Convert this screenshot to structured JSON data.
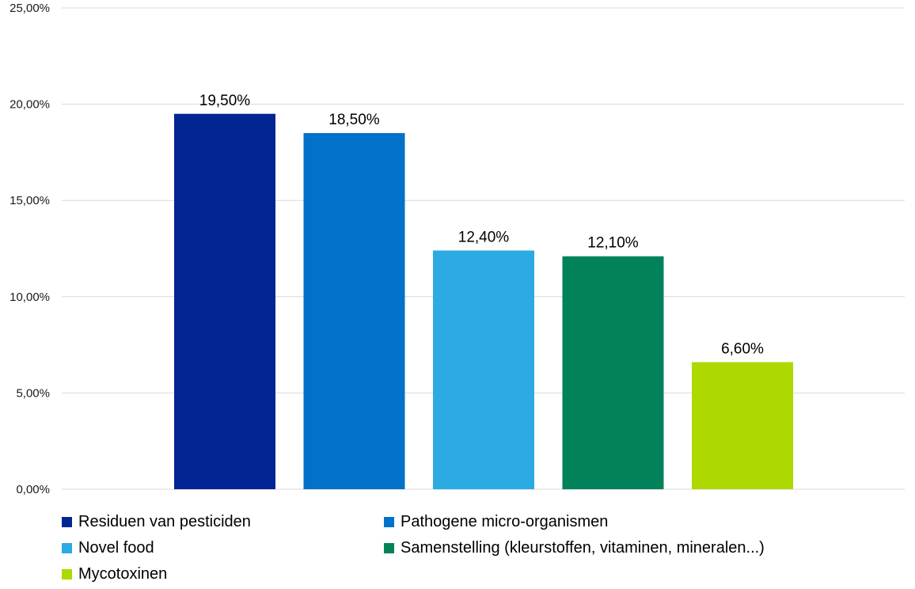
{
  "chart_data": {
    "type": "bar",
    "categories": [
      "Residuen van pesticiden",
      "Pathogene micro-organismen",
      "Novel food",
      "Samenstelling (kleurstoffen, vitaminen, mineralen...)",
      "Mycotoxinen"
    ],
    "values": [
      19.5,
      18.5,
      12.4,
      12.1,
      6.6
    ],
    "data_labels": [
      "19,50%",
      "18,50%",
      "12,40%",
      "12,10%",
      "6,60%"
    ],
    "colors": [
      "#022593",
      "#0271C9",
      "#2CAAE2",
      "#02825A",
      "#ADD800"
    ],
    "ylim": [
      0,
      25
    ],
    "yticks": [
      0,
      5,
      10,
      15,
      20,
      25
    ],
    "ytick_labels": [
      "0,00%",
      "5,00%",
      "10,00%",
      "15,00%",
      "20,00%",
      "25,00%"
    ],
    "grid": true,
    "legend_position": "bottom",
    "title": "",
    "xlabel": "",
    "ylabel": ""
  }
}
